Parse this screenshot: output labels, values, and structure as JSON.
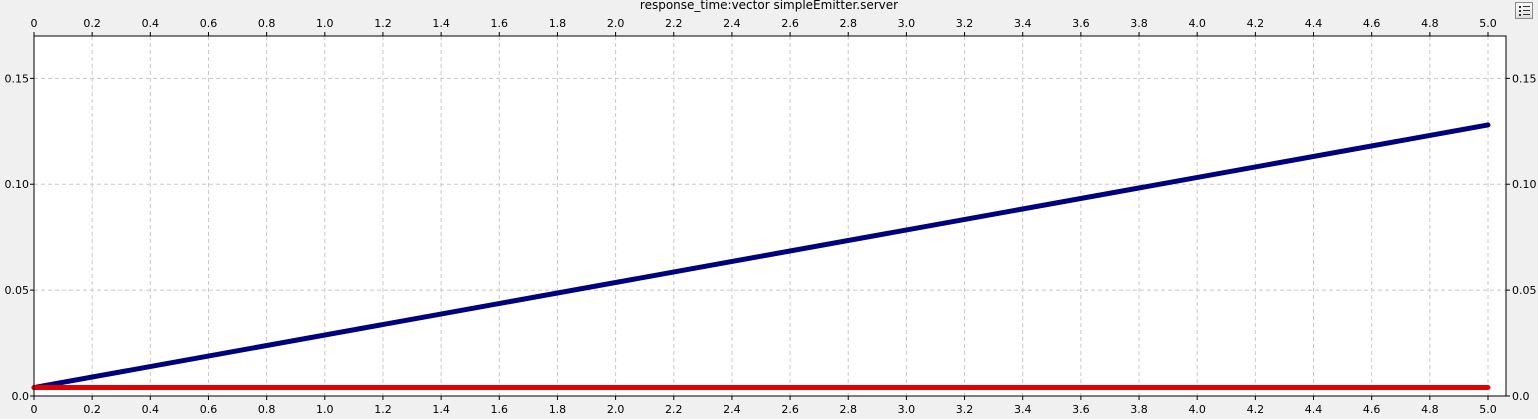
{
  "chart_data": {
    "type": "line",
    "title": "response_time:vector simpleEmitter.server",
    "xlabel": "",
    "ylabel": "",
    "xlim": [
      0,
      5.0
    ],
    "ylim": [
      0,
      0.17
    ],
    "x_ticks": [
      "0",
      "0.2",
      "0.4",
      "0.6",
      "0.8",
      "1.0",
      "1.2",
      "1.4",
      "1.6",
      "1.8",
      "2.0",
      "2.2",
      "2.4",
      "2.6",
      "2.8",
      "3.0",
      "3.2",
      "3.4",
      "3.6",
      "3.8",
      "4.0",
      "4.2",
      "4.4",
      "4.6",
      "4.8",
      "5.0"
    ],
    "y_ticks": [
      "0.0",
      "0.05",
      "0.10",
      "0.15"
    ],
    "grid": true,
    "series": [
      {
        "color": "#00007f",
        "x": [
          0,
          5.0
        ],
        "y": [
          0.004,
          0.128
        ]
      },
      {
        "color": "#e00000",
        "x": [
          0,
          5.0
        ],
        "y": [
          0.004,
          0.004
        ]
      }
    ]
  },
  "legend_button": {
    "icon": "legend-icon"
  }
}
